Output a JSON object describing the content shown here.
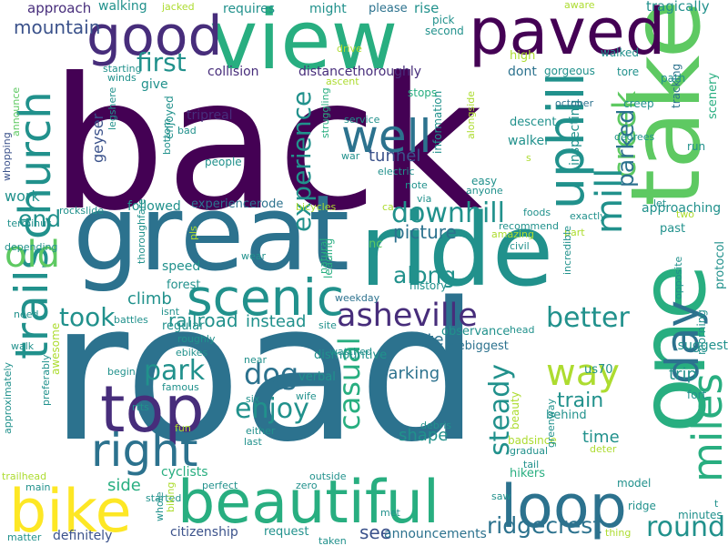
{
  "palette": {
    "dark_purple": "#440154",
    "indigo": "#472d7b",
    "blue": "#3b528b",
    "steel": "#2c728e",
    "teal": "#21918c",
    "sea": "#28ae80",
    "green": "#5ec962",
    "lime": "#addc30",
    "yellow": "#fde725"
  },
  "words": [
    "back",
    "road",
    "take",
    "ride",
    "great",
    "view",
    "paved",
    "good",
    "one",
    "beautiful",
    "bike",
    "top",
    "loop",
    "trails",
    "scenic",
    "day",
    "uphill",
    "church",
    "right",
    "well",
    "old",
    "miles",
    "creek",
    "asheville",
    "mill",
    "casual",
    "experience",
    "downhill",
    "enjoy",
    "way",
    "dog",
    "parked",
    "first",
    "end",
    "park",
    "took",
    "better",
    "round",
    "steady",
    "along",
    "ridgecrest",
    "railroad",
    "picture",
    "mountain",
    "tunnel",
    "instead",
    "train",
    "route",
    "parking",
    "climb",
    "time",
    "trip",
    "shape",
    "suggest",
    "see",
    "side",
    "work",
    "approach",
    "walking",
    "requires",
    "might",
    "please",
    "rise",
    "tragically",
    "collision",
    "distancethoroughly",
    "tripreal",
    "experiencerode",
    "followed",
    "geyser",
    "give",
    "inspecting",
    "tracking",
    "scenery",
    "approaching",
    "mebiggest",
    "verbal",
    "observance",
    "dismountive",
    "hikers",
    "cyclists",
    "citizenship",
    "announcements",
    "request",
    "speed",
    "regular",
    "forest",
    "history",
    "leading",
    "weekday",
    "walker",
    "descent",
    "dont",
    "gorgeous",
    "high",
    "pick",
    "second",
    "walked",
    "tore",
    "creep",
    "path",
    "degrees",
    "october",
    "information",
    "alongside",
    "stops",
    "ascent",
    "struggling",
    "drive",
    "aware",
    "jacked",
    "starting",
    "winds",
    "legshere",
    "announce",
    "whopping",
    "enjoyed",
    "bottom",
    "bad",
    "people",
    "war",
    "electric",
    "note",
    "via",
    "easy",
    "anyone",
    "service",
    "foods",
    "exactly",
    "recommend",
    "amazing",
    "civil",
    "part",
    "natural",
    "bicycles",
    "terminus",
    "rockslide",
    "thoroughfare",
    "depending",
    "need",
    "walk",
    "approximately",
    "preferably",
    "awesome",
    "famous",
    "roughly",
    "ebikes",
    "isnt",
    "battles",
    "begin",
    "wear",
    "pls",
    "nc",
    "ca",
    "incredible",
    "opposite",
    "morning",
    "protocol",
    "past",
    "two",
    "let",
    "run",
    "fort",
    "badsince",
    "beauty",
    "greenway",
    "model",
    "ridge",
    "minutes",
    "thing",
    "us70",
    "deter",
    "gradual",
    "tail",
    "saw",
    "met",
    "taken",
    "zero",
    "outside",
    "perfect",
    "started",
    "trailhead",
    "main",
    "matter",
    "definitely",
    "whole",
    "biking",
    "fun",
    "rtts",
    "six",
    "wife",
    "either",
    "last",
    "near",
    "watched",
    "site",
    "debris",
    "behind",
    "head",
    "s",
    "t"
  ]
}
